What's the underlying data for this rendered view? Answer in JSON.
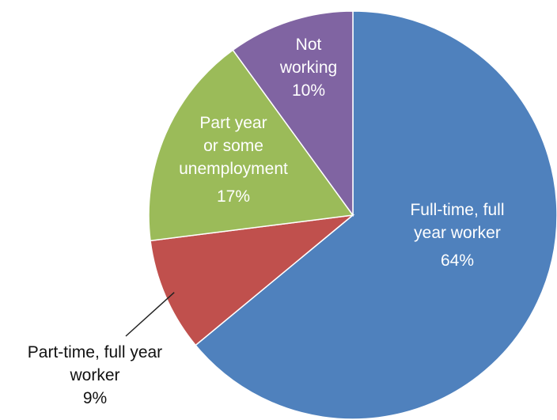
{
  "chart_data": {
    "type": "pie",
    "start_angle_deg": 0,
    "direction": "clockwise",
    "slices": [
      {
        "key": "full_time",
        "name": "Full-time, full year worker",
        "lines": [
          "Full-time, full",
          "year worker"
        ],
        "pct_label": "64%",
        "value": 64,
        "color": "#4f81bd",
        "label_inside": true
      },
      {
        "key": "part_time",
        "name": "Part-time, full year worker",
        "lines": [
          "Part-time, full year",
          "worker"
        ],
        "pct_label": "9%",
        "value": 9,
        "color": "#c0504d",
        "label_inside": false
      },
      {
        "key": "part_year",
        "name": "Part year or some unemployment",
        "lines": [
          "Part year",
          "or some",
          "unemployment"
        ],
        "pct_label": "17%",
        "value": 17,
        "color": "#9bbb59",
        "label_inside": true
      },
      {
        "key": "not_working",
        "name": "Not working",
        "lines": [
          "Not",
          "working"
        ],
        "pct_label": "10%",
        "value": 10,
        "color": "#8064a2",
        "label_inside": true
      }
    ]
  }
}
